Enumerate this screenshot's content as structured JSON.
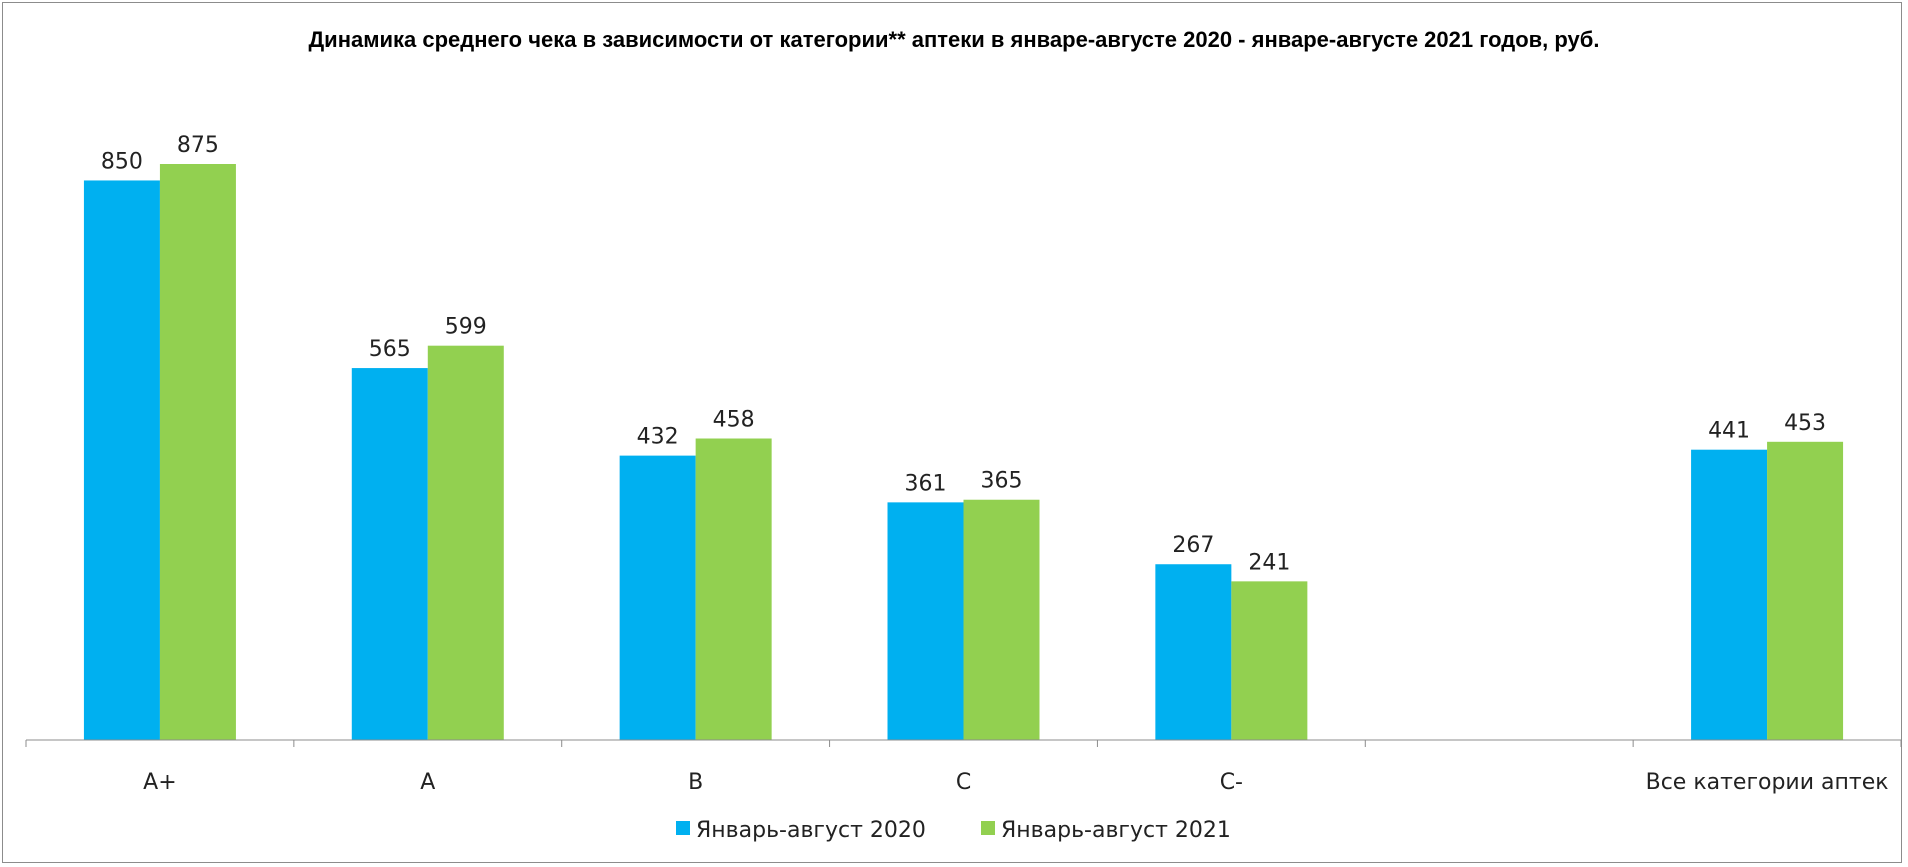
{
  "chart_data": {
    "type": "bar",
    "title": "Динамика среднего чека в зависимости от категории** аптеки в январе-августе 2020 - январе-августе 2021 годов, руб.",
    "categories": [
      "А+",
      "А",
      "В",
      "С",
      "С-",
      "",
      "Все категории аптек"
    ],
    "series": [
      {
        "name": "Январь-август 2020",
        "color": "#00b0f0",
        "values": [
          850,
          565,
          432,
          361,
          267,
          null,
          441
        ]
      },
      {
        "name": "Январь-август 2021",
        "color": "#92d050",
        "values": [
          875,
          599,
          458,
          365,
          241,
          null,
          453
        ]
      }
    ],
    "ylim": [
      0,
      875
    ],
    "xlabel": "",
    "ylabel": "",
    "grid": false,
    "legend_position": "bottom"
  }
}
